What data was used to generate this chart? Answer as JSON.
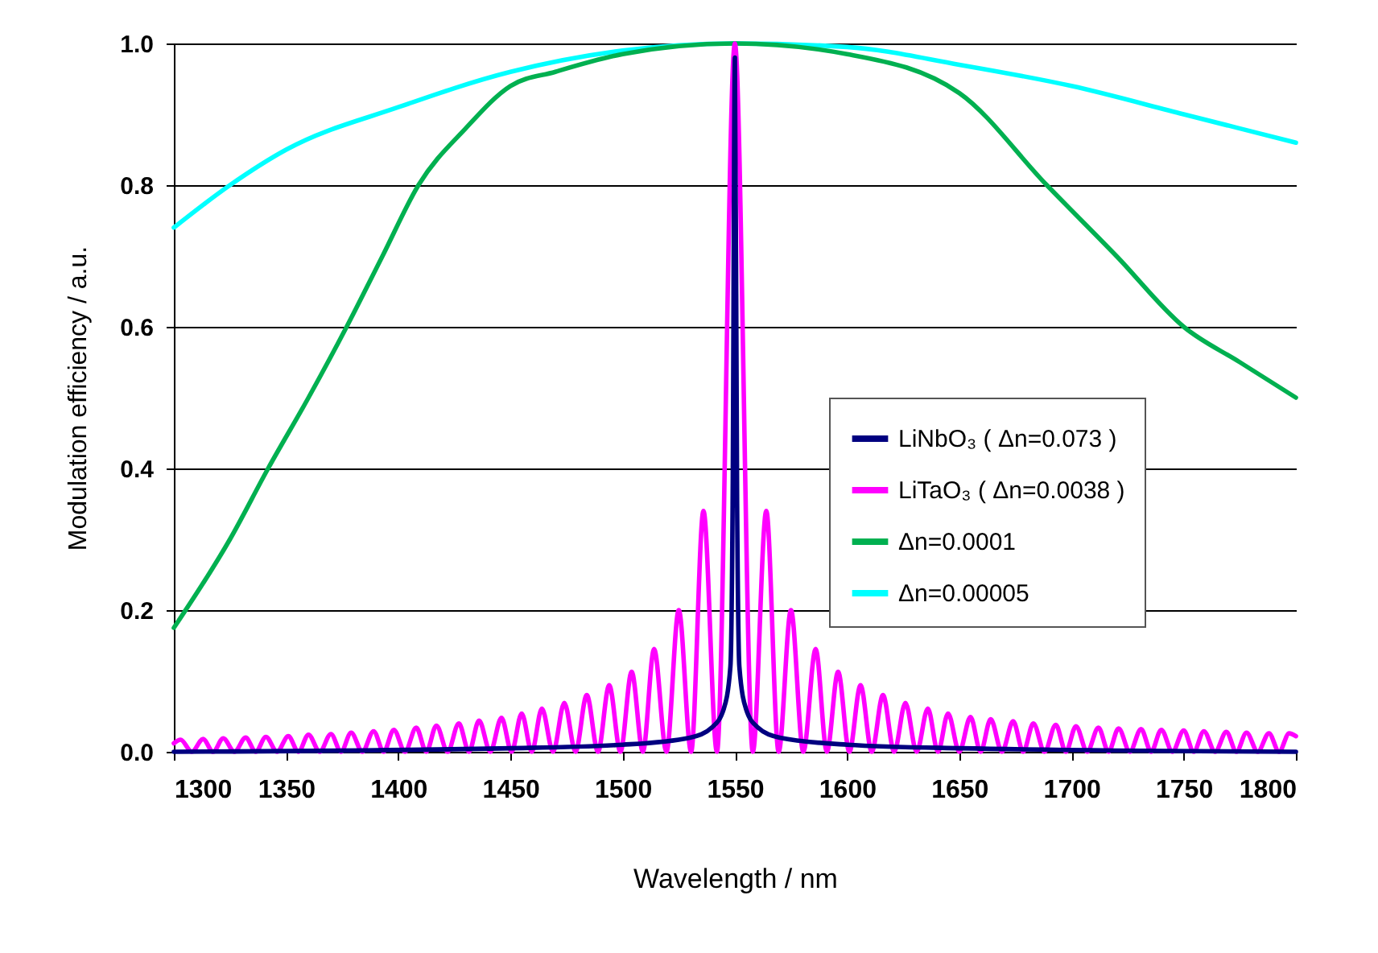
{
  "chart_data": {
    "type": "line",
    "xlabel": "Wavelength   /   nm",
    "ylabel": "Modulation efficiency / a.u.",
    "xlim": [
      1300,
      1800
    ],
    "xticks": [
      1300,
      1350,
      1400,
      1450,
      1500,
      1550,
      1600,
      1650,
      1700,
      1750,
      1800
    ],
    "ylim": [
      0,
      1
    ],
    "yticks": [
      {
        "value": 0,
        "label": "0.0"
      },
      {
        "value": 0.2,
        "label": "0.2"
      },
      {
        "value": 0.4,
        "label": "0.4"
      },
      {
        "value": 0.6,
        "label": "0.6"
      },
      {
        "value": 0.8,
        "label": "0.8"
      },
      {
        "value": 1,
        "label": "1.0"
      }
    ],
    "grid": "y",
    "legend": "right",
    "line_style": "solid",
    "series": [
      {
        "name": "LiNbO₃ ( Δn=0.073 )",
        "color": "#000080",
        "x": [
          1300,
          1450,
          1500,
          1530,
          1540,
          1545,
          1548,
          1549,
          1550,
          1551,
          1552,
          1555,
          1560,
          1570,
          1600,
          1650,
          1800
        ],
        "values": [
          0,
          0.005,
          0.01,
          0.02,
          0.035,
          0.06,
          0.12,
          0.35,
          0.98,
          0.35,
          0.12,
          0.06,
          0.035,
          0.02,
          0.01,
          0.005,
          0
        ]
      },
      {
        "name": "LiTaO₃ ( Δn=0.0038 )",
        "color": "#ff00ff",
        "x": [
          1300,
          1303,
          1308,
          1313,
          1317.5,
          1322,
          1327,
          1332,
          1336.5,
          1341,
          1346,
          1351,
          1355.5,
          1360,
          1365,
          1370,
          1374.5,
          1379,
          1384,
          1389,
          1393.5,
          1398,
          1403,
          1408,
          1412.5,
          1417,
          1422,
          1427,
          1431.5,
          1436,
          1441,
          1446,
          1450.5,
          1455,
          1459.5,
          1464,
          1469,
          1474,
          1479,
          1484,
          1489,
          1494,
          1499,
          1504,
          1509,
          1514,
          1519.5,
          1525,
          1530.5,
          1536,
          1542,
          1550,
          1558,
          1564,
          1569.5,
          1575,
          1580.5,
          1586,
          1591,
          1596,
          1601,
          1606,
          1611,
          1616,
          1621,
          1626,
          1631,
          1636,
          1640.5,
          1645,
          1650,
          1655,
          1659.5,
          1664,
          1669,
          1674,
          1678.5,
          1683,
          1688,
          1693,
          1697.5,
          1702,
          1707,
          1712,
          1716.5,
          1721,
          1726,
          1731,
          1735.5,
          1740,
          1745,
          1750,
          1754.5,
          1759,
          1764,
          1769,
          1773.5,
          1778,
          1783,
          1788,
          1792.5,
          1797,
          1800
        ],
        "values": [
          0.012,
          0.017,
          0,
          0.018,
          0,
          0.019,
          0,
          0.02,
          0,
          0.021,
          0,
          0.022,
          0,
          0.024,
          0,
          0.025,
          0,
          0.027,
          0,
          0.029,
          0,
          0.031,
          0,
          0.034,
          0,
          0.037,
          0,
          0.04,
          0,
          0.044,
          0,
          0.048,
          0,
          0.054,
          0,
          0.061,
          0,
          0.069,
          0,
          0.08,
          0,
          0.094,
          0,
          0.113,
          0,
          0.145,
          0,
          0.2,
          0,
          0.34,
          0,
          1.0,
          0,
          0.34,
          0,
          0.2,
          0,
          0.145,
          0,
          0.113,
          0,
          0.094,
          0,
          0.08,
          0,
          0.069,
          0,
          0.061,
          0,
          0.054,
          0,
          0.049,
          0,
          0.046,
          0,
          0.043,
          0,
          0.04,
          0,
          0.038,
          0,
          0.036,
          0,
          0.034,
          0,
          0.033,
          0,
          0.032,
          0,
          0.031,
          0,
          0.03,
          0,
          0.029,
          0,
          0.028,
          0,
          0.027,
          0,
          0.026,
          0,
          0.026,
          0.022
        ]
      },
      {
        "name": "Δn=0.0001",
        "color": "#00b050",
        "x": [
          1300,
          1325,
          1342,
          1360,
          1377,
          1393,
          1409,
          1430,
          1450,
          1470,
          1500,
          1550,
          1600,
          1650,
          1689,
          1720,
          1750,
          1775,
          1800
        ],
        "values": [
          0.175,
          0.3,
          0.4,
          0.5,
          0.6,
          0.7,
          0.8,
          0.88,
          0.94,
          0.96,
          0.985,
          1.0,
          0.985,
          0.93,
          0.8,
          0.7,
          0.6,
          0.55,
          0.5
        ]
      },
      {
        "name": "Δn=0.00005",
        "color": "#00ffff",
        "x": [
          1300,
          1325,
          1350,
          1400,
          1450,
          1500,
          1550,
          1600,
          1650,
          1700,
          1750,
          1800
        ],
        "values": [
          0.74,
          0.8,
          0.85,
          0.91,
          0.96,
          0.99,
          1.0,
          0.995,
          0.97,
          0.94,
          0.9,
          0.86
        ]
      }
    ]
  }
}
